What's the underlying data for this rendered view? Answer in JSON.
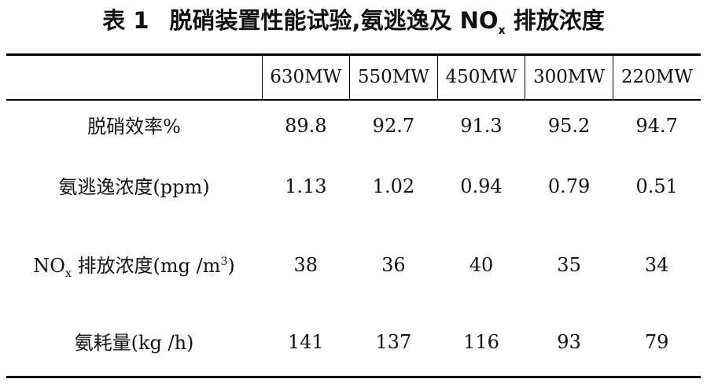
{
  "title": {
    "label": "表 1",
    "text_main": "脱硝装置性能试验,氨逃逸及 NO",
    "text_sub": "x",
    "text_tail": " 排放浓度"
  },
  "table": {
    "columns": [
      "630MW",
      "550MW",
      "450MW",
      "300MW",
      "220MW"
    ],
    "rows": [
      {
        "label_main": "脱硝效率%",
        "label_sub": "",
        "label_tail": "",
        "label_sup": "",
        "label_end": "",
        "values": [
          "89.8",
          "92.7",
          "91.3",
          "95.2",
          "94.7"
        ]
      },
      {
        "label_main": "氨逃逸浓度(ppm)",
        "label_sub": "",
        "label_tail": "",
        "label_sup": "",
        "label_end": "",
        "values": [
          "1.13",
          "1.02",
          "0.94",
          "0.79",
          "0.51"
        ]
      },
      {
        "label_main": "NO",
        "label_sub": "x",
        "label_tail": " 排放浓度(mg /m",
        "label_sup": "3",
        "label_end": ")",
        "values": [
          "38",
          "36",
          "40",
          "35",
          "34"
        ]
      },
      {
        "label_main": "氨耗量(kg /h)",
        "label_sub": "",
        "label_tail": "",
        "label_sup": "",
        "label_end": "",
        "values": [
          "141",
          "137",
          "116",
          "93",
          "79"
        ]
      }
    ]
  }
}
